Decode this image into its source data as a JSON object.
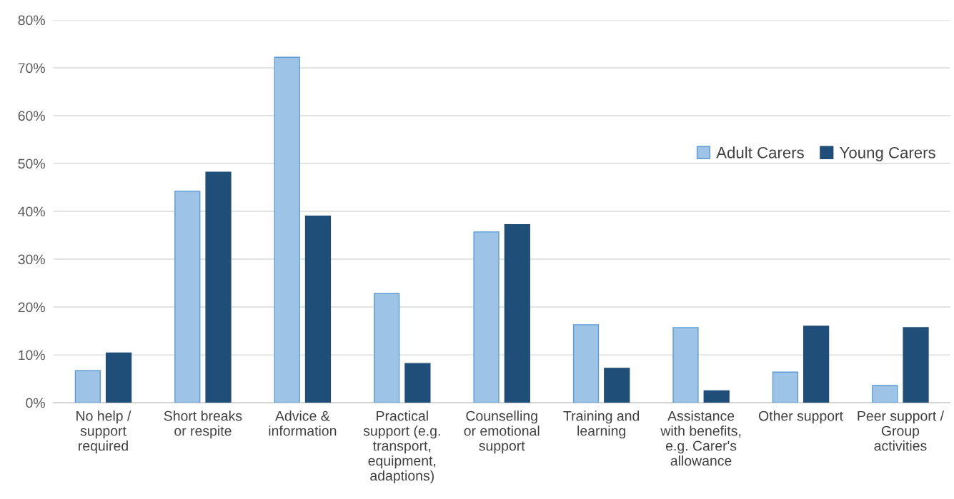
{
  "chart_data": {
    "type": "bar",
    "categories": [
      "No help /\nsupport\nrequired",
      "Short breaks\nor respite",
      "Advice &\ninformation",
      "Practical\nsupport (e.g.\ntransport,\nequipment,\nadaptions)",
      "Counselling\nor emotional\nsupport",
      "Training and\nlearning",
      "Assistance\nwith benefits,\ne.g. Carer's\nallowance",
      "Other support",
      "Peer support /\nGroup\nactivities"
    ],
    "series": [
      {
        "name": "Adult Carers",
        "color": "#9dc3e6",
        "values": [
          6.7,
          44.2,
          72.2,
          22.8,
          35.7,
          16.3,
          15.7,
          6.4,
          3.6
        ]
      },
      {
        "name": "Young Carers",
        "color": "#1f4e79",
        "values": [
          10.4,
          48.2,
          39.0,
          8.2,
          37.2,
          7.2,
          2.5,
          16.0,
          15.7
        ]
      }
    ],
    "ylim": [
      0,
      80
    ],
    "yticks": [
      {
        "value": 0,
        "label": "0%"
      },
      {
        "value": 10,
        "label": "10%"
      },
      {
        "value": 20,
        "label": "20%"
      },
      {
        "value": 30,
        "label": "30%"
      },
      {
        "value": 40,
        "label": "40%"
      },
      {
        "value": 50,
        "label": "50%"
      },
      {
        "value": 60,
        "label": "60%"
      },
      {
        "value": 70,
        "label": "70%"
      },
      {
        "value": 80,
        "label": "80%"
      }
    ],
    "grid": "y",
    "legend": "right"
  }
}
